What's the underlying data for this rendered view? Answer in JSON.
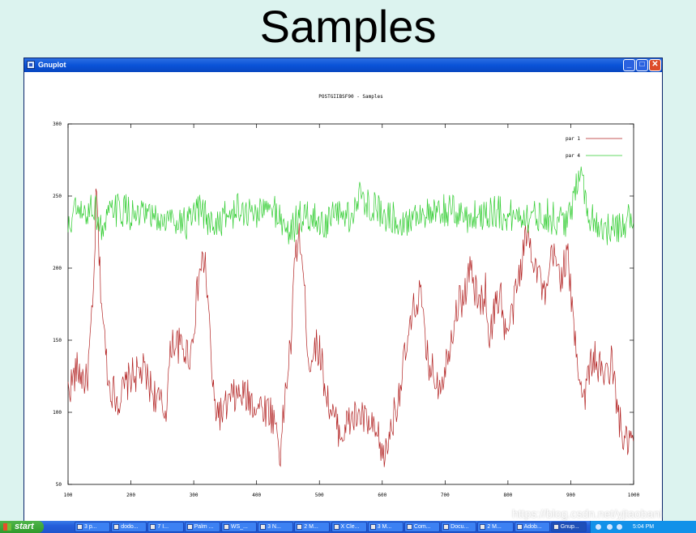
{
  "slide": {
    "title": "Samples"
  },
  "window": {
    "title": "Gnuplot",
    "btn_min": "_",
    "btn_max": "□",
    "btn_close": "✕"
  },
  "chart_data": {
    "type": "line",
    "title": "POSTGIIBSF90 - Samples",
    "xlabel": "",
    "ylabel": "",
    "xlim": [
      100,
      1000
    ],
    "ylim": [
      50,
      300
    ],
    "xticks": [
      100,
      200,
      300,
      400,
      500,
      600,
      700,
      800,
      900,
      1000
    ],
    "yticks": [
      50,
      100,
      150,
      200,
      250,
      300
    ],
    "legend_position": "top-right",
    "grid": false,
    "series": [
      {
        "name": "par 1",
        "color": "#b22222",
        "anchors": [
          [
            100,
            115
          ],
          [
            115,
            130
          ],
          [
            130,
            120
          ],
          [
            140,
            175
          ],
          [
            145,
            255
          ],
          [
            150,
            200
          ],
          [
            158,
            150
          ],
          [
            165,
            120
          ],
          [
            180,
            108
          ],
          [
            200,
            125
          ],
          [
            220,
            128
          ],
          [
            240,
            110
          ],
          [
            255,
            100
          ],
          [
            265,
            150
          ],
          [
            280,
            145
          ],
          [
            295,
            140
          ],
          [
            310,
            200
          ],
          [
            318,
            205
          ],
          [
            325,
            160
          ],
          [
            332,
            105
          ],
          [
            345,
            98
          ],
          [
            360,
            110
          ],
          [
            380,
            112
          ],
          [
            400,
            105
          ],
          [
            420,
            102
          ],
          [
            432,
            90
          ],
          [
            438,
            70
          ],
          [
            445,
            110
          ],
          [
            455,
            150
          ],
          [
            462,
            215
          ],
          [
            470,
            220
          ],
          [
            478,
            170
          ],
          [
            484,
            130
          ],
          [
            490,
            145
          ],
          [
            500,
            145
          ],
          [
            510,
            115
          ],
          [
            520,
            98
          ],
          [
            535,
            85
          ],
          [
            550,
            95
          ],
          [
            565,
            98
          ],
          [
            580,
            90
          ],
          [
            595,
            80
          ],
          [
            603,
            65
          ],
          [
            613,
            88
          ],
          [
            625,
            110
          ],
          [
            635,
            135
          ],
          [
            650,
            170
          ],
          [
            660,
            185
          ],
          [
            670,
            140
          ],
          [
            680,
            128
          ],
          [
            690,
            120
          ],
          [
            700,
            130
          ],
          [
            710,
            155
          ],
          [
            720,
            175
          ],
          [
            730,
            180
          ],
          [
            740,
            200
          ],
          [
            750,
            180
          ],
          [
            755,
            175
          ],
          [
            765,
            185
          ],
          [
            770,
            150
          ],
          [
            778,
            170
          ],
          [
            788,
            185
          ],
          [
            795,
            155
          ],
          [
            803,
            160
          ],
          [
            818,
            195
          ],
          [
            830,
            225
          ],
          [
            840,
            210
          ],
          [
            850,
            195
          ],
          [
            860,
            175
          ],
          [
            870,
            210
          ],
          [
            885,
            195
          ],
          [
            895,
            210
          ],
          [
            903,
            165
          ],
          [
            913,
            130
          ],
          [
            920,
            108
          ],
          [
            935,
            140
          ],
          [
            945,
            130
          ],
          [
            955,
            125
          ],
          [
            965,
            135
          ],
          [
            975,
            100
          ],
          [
            985,
            78
          ],
          [
            995,
            80
          ]
        ]
      },
      {
        "name": "par 4",
        "color": "#32cd32",
        "anchors": [
          [
            100,
            225
          ],
          [
            110,
            240
          ],
          [
            125,
            235
          ],
          [
            140,
            245
          ],
          [
            155,
            225
          ],
          [
            170,
            240
          ],
          [
            190,
            240
          ],
          [
            210,
            235
          ],
          [
            230,
            235
          ],
          [
            250,
            232
          ],
          [
            270,
            235
          ],
          [
            290,
            230
          ],
          [
            310,
            240
          ],
          [
            330,
            230
          ],
          [
            350,
            235
          ],
          [
            370,
            240
          ],
          [
            390,
            238
          ],
          [
            410,
            240
          ],
          [
            430,
            240
          ],
          [
            450,
            225
          ],
          [
            470,
            235
          ],
          [
            490,
            235
          ],
          [
            510,
            230
          ],
          [
            530,
            238
          ],
          [
            550,
            235
          ],
          [
            565,
            250
          ],
          [
            580,
            245
          ],
          [
            600,
            238
          ],
          [
            620,
            235
          ],
          [
            640,
            232
          ],
          [
            660,
            240
          ],
          [
            680,
            235
          ],
          [
            700,
            240
          ],
          [
            720,
            238
          ],
          [
            740,
            235
          ],
          [
            760,
            238
          ],
          [
            780,
            240
          ],
          [
            800,
            235
          ],
          [
            820,
            238
          ],
          [
            840,
            235
          ],
          [
            860,
            238
          ],
          [
            880,
            232
          ],
          [
            900,
            235
          ],
          [
            915,
            275
          ],
          [
            925,
            240
          ],
          [
            940,
            232
          ],
          [
            955,
            228
          ],
          [
            970,
            225
          ],
          [
            985,
            230
          ],
          [
            1000,
            240
          ]
        ]
      }
    ]
  },
  "taskbar": {
    "start_label": "start",
    "items": [
      "3 p...",
      "dodo...",
      "7 I...",
      "Palm ...",
      "WS_...",
      "3 N...",
      "2 M...",
      "X Cle...",
      "3 M...",
      "Com...",
      "Docu...",
      "2 M...",
      "Adob...",
      "Gnup..."
    ],
    "clock": "5:04 PM"
  },
  "watermark": "https://blog.csdn.net/yjtaobani"
}
